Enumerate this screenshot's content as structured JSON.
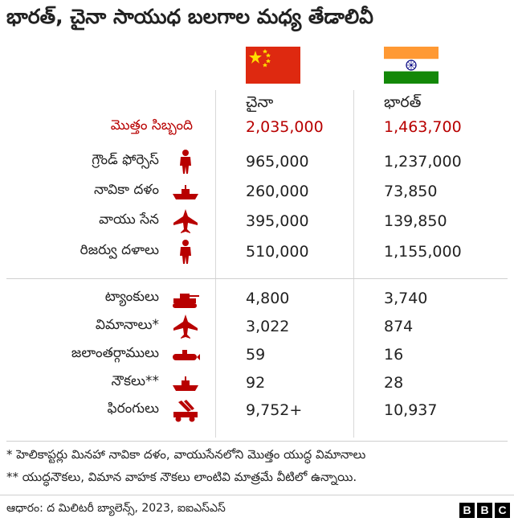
{
  "title": "భారత్, చైనా సాయుధ బలగాల మధ్య తేడాలివీ",
  "columns": {
    "china": "చైనా",
    "india": "భారత్"
  },
  "colors": {
    "accent_red": "#b80000",
    "icon_red": "#b80000"
  },
  "rows_top": [
    {
      "label": "మొత్తం సిబ్బంది",
      "icon": "",
      "china": "2,035,000",
      "india": "1,463,700"
    },
    {
      "label": "గ్రౌండ్ ఫోర్సెస్",
      "icon": "soldier-icon",
      "china": "965,000",
      "india": "1,237,000"
    },
    {
      "label": "నావికా దళం",
      "icon": "ship-icon",
      "china": "260,000",
      "india": "73,850"
    },
    {
      "label": "వాయు సేన",
      "icon": "jet-icon",
      "china": "395,000",
      "india": "139,850"
    },
    {
      "label": "రిజర్వు దళాలు",
      "icon": "soldier-icon",
      "china": "510,000",
      "india": "1,155,000"
    }
  ],
  "rows_bottom": [
    {
      "label": "ట్యాంకులు",
      "icon": "tank-icon",
      "china": "4,800",
      "india": "3,740"
    },
    {
      "label": "విమానాలు*",
      "icon": "jet-icon",
      "china": "3,022",
      "india": "874"
    },
    {
      "label": "జలాంతర్గాములు",
      "icon": "submarine-icon",
      "china": "59",
      "india": "16"
    },
    {
      "label": "నౌకలు**",
      "icon": "ship-icon",
      "china": "92",
      "india": "28"
    },
    {
      "label": "ఫిరంగులు",
      "icon": "rocket-launcher-icon",
      "china": "9,752+",
      "india": "10,937"
    }
  ],
  "notes": [
    "* హెలికాప్టర్లు మినహా నావికా దళం, వాయుసేనలోని మొత్తం యుద్ధ విమానాలు",
    "** యుద్ధనౌకలు, విమాన వాహక నౌకలు లాంటివి మాత్రమే వీటిలో ఉన్నాయి."
  ],
  "source": "ఆధారం: ద మిలిటరీ బ్యాలెన్స్, 2023, ఐఐఎస్ఎస్",
  "logo": [
    "B",
    "B",
    "C"
  ]
}
